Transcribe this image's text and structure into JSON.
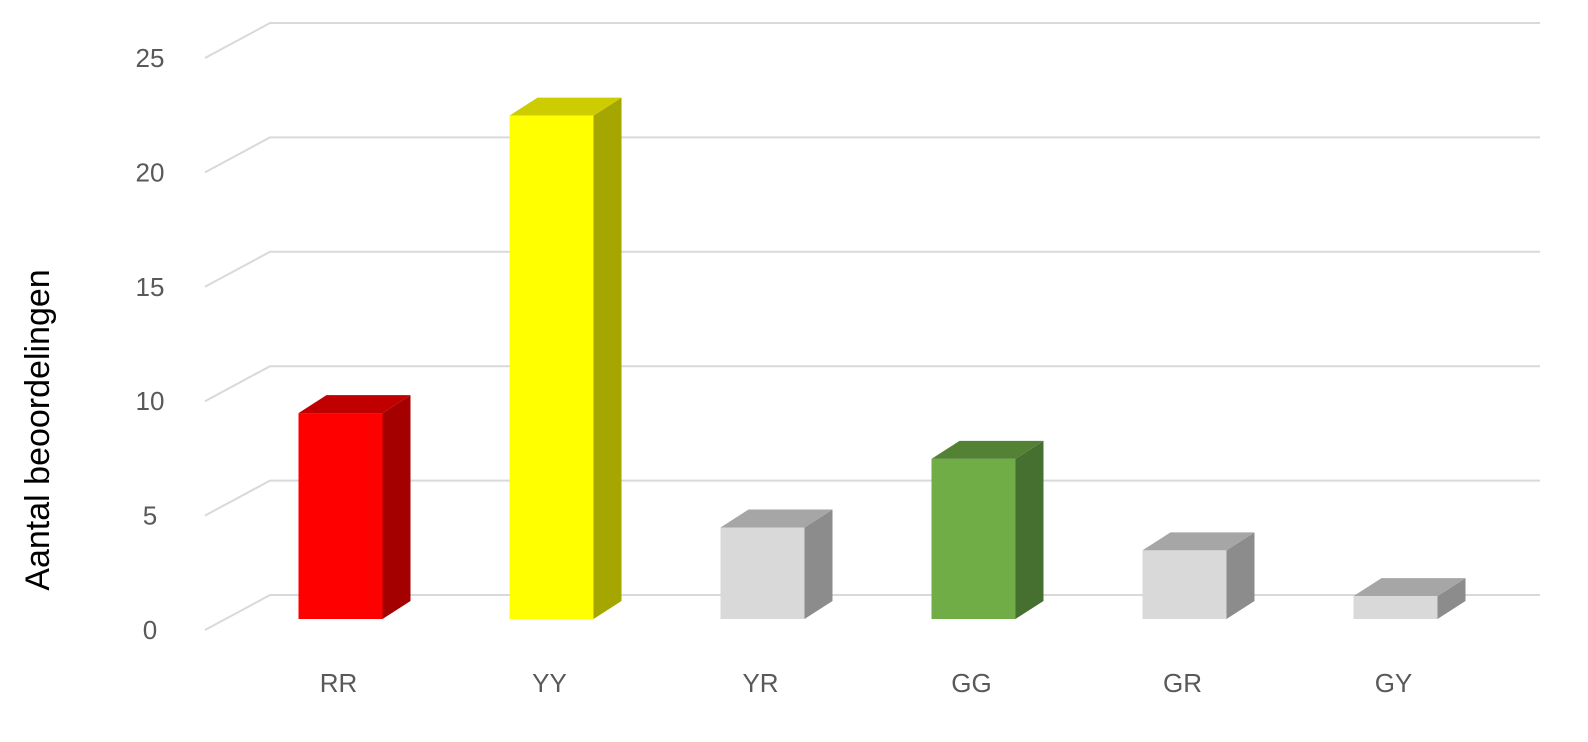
{
  "chart_data": {
    "type": "bar",
    "style": "3d-column",
    "categories": [
      "RR",
      "YY",
      "YR",
      "GG",
      "GR",
      "GY"
    ],
    "values": [
      9,
      22,
      4,
      7,
      3,
      1
    ],
    "colors": [
      "#ff0000",
      "#ffff00",
      "#d9d9d9",
      "#70ad47",
      "#d9d9d9",
      "#d9d9d9"
    ],
    "side_colors": [
      "#a50000",
      "#a6a600",
      "#8c8c8c",
      "#467030",
      "#8c8c8c",
      "#8c8c8c"
    ],
    "top_colors": [
      "#c00000",
      "#cccc00",
      "#a6a6a6",
      "#548235",
      "#a6a6a6",
      "#a6a6a6"
    ],
    "title": "",
    "xlabel": "",
    "ylabel": "Aantal beoordelingen",
    "ylim": [
      0,
      25
    ],
    "yticks": [
      "0",
      "5",
      "10",
      "15",
      "20",
      "25"
    ],
    "grid": true,
    "legend": "none"
  }
}
